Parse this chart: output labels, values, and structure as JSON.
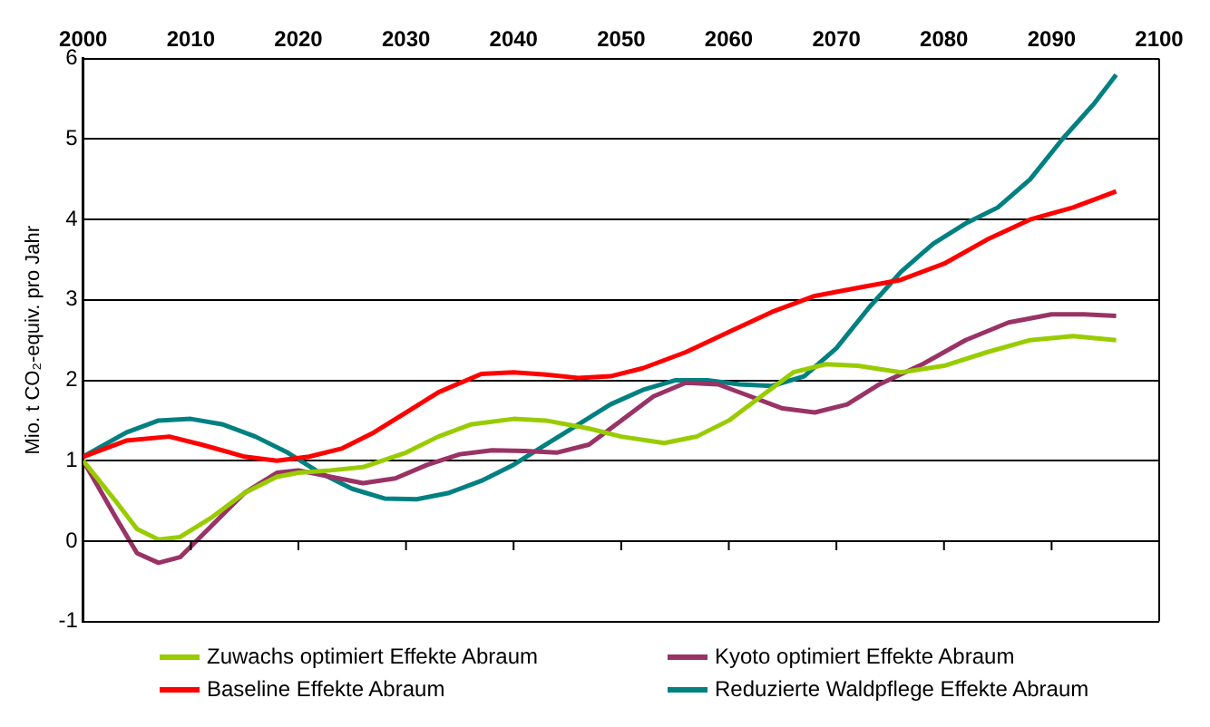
{
  "chart_data": {
    "type": "line",
    "ylabel": "Mio. t CO₂-equiv. pro Jahr",
    "xlim": [
      2000,
      2100
    ],
    "xticks": [
      2000,
      2010,
      2020,
      2030,
      2040,
      2050,
      2060,
      2070,
      2080,
      2090,
      2100
    ],
    "ylim": [
      -1,
      6
    ],
    "yticks": [
      -1,
      0,
      1,
      2,
      3,
      4,
      5,
      6
    ],
    "grid": "y",
    "legend": "bottom",
    "marker": "none",
    "line_style": "solid",
    "series": [
      {
        "name": "Zuwachs optimiert Effekte Abraum",
        "color": "#99cc00",
        "x": [
          2000,
          2003,
          2005,
          2007,
          2009,
          2012,
          2015,
          2018,
          2020,
          2023,
          2026,
          2030,
          2033,
          2036,
          2040,
          2043,
          2047,
          2050,
          2054,
          2057,
          2060,
          2063,
          2066,
          2069,
          2072,
          2076,
          2080,
          2084,
          2088,
          2092,
          2096
        ],
        "values": [
          1,
          0.5,
          0.15,
          0.02,
          0.05,
          0.3,
          0.6,
          0.8,
          0.85,
          0.88,
          0.92,
          1.1,
          1.3,
          1.45,
          1.52,
          1.5,
          1.4,
          1.3,
          1.22,
          1.3,
          1.5,
          1.8,
          2.1,
          2.2,
          2.18,
          2.1,
          2.18,
          2.35,
          2.5,
          2.55,
          2.5
        ]
      },
      {
        "name": "Kyoto optimiert Effekte Abraum",
        "color": "#993366",
        "x": [
          2000,
          2003,
          2005,
          2007,
          2009,
          2012,
          2015,
          2018,
          2020,
          2023,
          2026,
          2029,
          2032,
          2035,
          2038,
          2041,
          2044,
          2047,
          2050,
          2053,
          2056,
          2059,
          2062,
          2065,
          2068,
          2071,
          2074,
          2078,
          2082,
          2086,
          2090,
          2093,
          2096
        ],
        "values": [
          1,
          0.3,
          -0.15,
          -0.27,
          -0.2,
          0.2,
          0.6,
          0.85,
          0.88,
          0.8,
          0.72,
          0.78,
          0.95,
          1.08,
          1.13,
          1.12,
          1.1,
          1.2,
          1.5,
          1.8,
          1.97,
          1.95,
          1.8,
          1.65,
          1.6,
          1.7,
          1.95,
          2.2,
          2.5,
          2.72,
          2.82,
          2.82,
          2.8
        ]
      },
      {
        "name": "Baseline Effekte Abraum",
        "color": "#ff0000",
        "x": [
          2000,
          2004,
          2008,
          2011,
          2015,
          2018,
          2021,
          2024,
          2027,
          2030,
          2033,
          2037,
          2040,
          2043,
          2046,
          2049,
          2052,
          2056,
          2060,
          2064,
          2068,
          2072,
          2076,
          2080,
          2084,
          2088,
          2092,
          2096
        ],
        "values": [
          1.05,
          1.25,
          1.3,
          1.2,
          1.05,
          1,
          1.05,
          1.15,
          1.35,
          1.6,
          1.85,
          2.08,
          2.1,
          2.07,
          2.03,
          2.05,
          2.15,
          2.35,
          2.6,
          2.85,
          3.05,
          3.15,
          3.25,
          3.45,
          3.75,
          4,
          4.15,
          4.35
        ]
      },
      {
        "name": "Reduzierte Waldpflege Effekte Abraum",
        "color": "#008080",
        "x": [
          2000,
          2004,
          2007,
          2010,
          2013,
          2016,
          2019,
          2022,
          2025,
          2028,
          2031,
          2034,
          2037,
          2040,
          2043,
          2046,
          2049,
          2052,
          2055,
          2058,
          2061,
          2064,
          2067,
          2070,
          2073,
          2076,
          2079,
          2082,
          2085,
          2088,
          2091,
          2094,
          2096
        ],
        "values": [
          1.05,
          1.35,
          1.5,
          1.52,
          1.45,
          1.3,
          1.1,
          0.85,
          0.65,
          0.53,
          0.52,
          0.6,
          0.75,
          0.95,
          1.2,
          1.45,
          1.7,
          1.88,
          2,
          2,
          1.95,
          1.93,
          2.05,
          2.4,
          2.9,
          3.35,
          3.7,
          3.95,
          4.15,
          4.5,
          5,
          5.45,
          5.8
        ]
      }
    ]
  }
}
